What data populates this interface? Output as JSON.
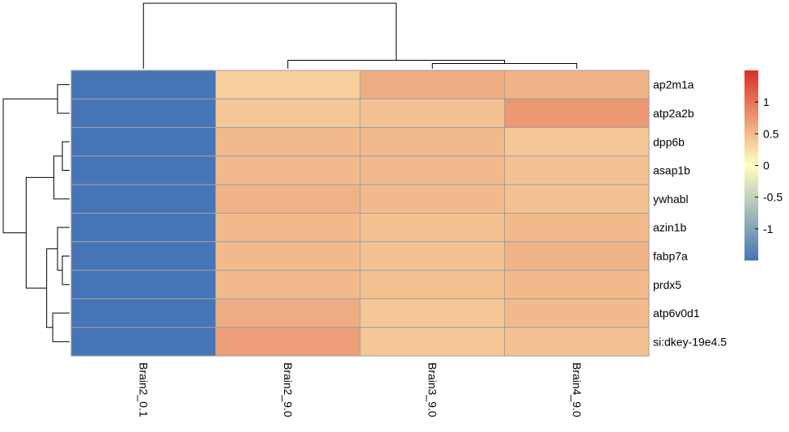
{
  "chart_data": {
    "type": "heatmap",
    "title": "",
    "xlabel": "",
    "ylabel": "",
    "columns": [
      "Brain2_0.1",
      "Brain2_9.0",
      "Brain3_9.0",
      "Brain4_9.0"
    ],
    "rows": [
      "ap2m1a",
      "atp2a2b",
      "dpp6b",
      "asap1b",
      "ywhabl",
      "azin1b",
      "fabp7a",
      "prdx5",
      "atp6v0d1",
      "si:dkey-19e4.5"
    ],
    "values": [
      [
        -1.5,
        0.35,
        0.6,
        0.55
      ],
      [
        -1.5,
        0.4,
        0.45,
        0.75
      ],
      [
        -1.5,
        0.5,
        0.5,
        0.4
      ],
      [
        -1.5,
        0.5,
        0.5,
        0.45
      ],
      [
        -1.5,
        0.55,
        0.5,
        0.45
      ],
      [
        -1.5,
        0.5,
        0.45,
        0.5
      ],
      [
        -1.5,
        0.5,
        0.45,
        0.55
      ],
      [
        -1.5,
        0.5,
        0.45,
        0.5
      ],
      [
        -1.5,
        0.6,
        0.4,
        0.5
      ],
      [
        -1.5,
        0.7,
        0.4,
        0.45
      ]
    ],
    "color_scale": {
      "domain": [
        -1.5,
        0,
        1.5
      ],
      "colors": [
        "#4575b4",
        "#ffffbf",
        "#d73027"
      ],
      "legend_ticks": [
        "1",
        "0.5",
        "0",
        "-0.5",
        "-1"
      ],
      "legend_tick_values": [
        1,
        0.5,
        0,
        -0.5,
        -1
      ],
      "legend_placement": "right"
    },
    "grid_color": "#a0a0a0",
    "column_dendrogram": [
      {
        "left": 2,
        "right": 3,
        "height": 0.08
      },
      {
        "left": 1,
        "right": "m0",
        "height": 0.13
      },
      {
        "left": 0,
        "right": "m1",
        "height": 1.0
      }
    ],
    "row_dendrogram": [
      {
        "left": 0,
        "right": 1,
        "height": 0.1
      },
      {
        "left": 2,
        "right": 3,
        "height": 0.06
      },
      {
        "left": 6,
        "right": 7,
        "height": 0.06
      },
      {
        "left": 5,
        "right": "m2",
        "height": 0.1
      },
      {
        "left": "m1",
        "right": 4,
        "height": 0.13
      },
      {
        "left": 8,
        "right": 9,
        "height": 0.14
      },
      {
        "left": "m3",
        "right": "m5",
        "height": 0.19
      },
      {
        "left": "m4",
        "right": "m6",
        "height": 0.36
      },
      {
        "left": "m0",
        "right": "m7",
        "height": 0.55
      }
    ]
  }
}
